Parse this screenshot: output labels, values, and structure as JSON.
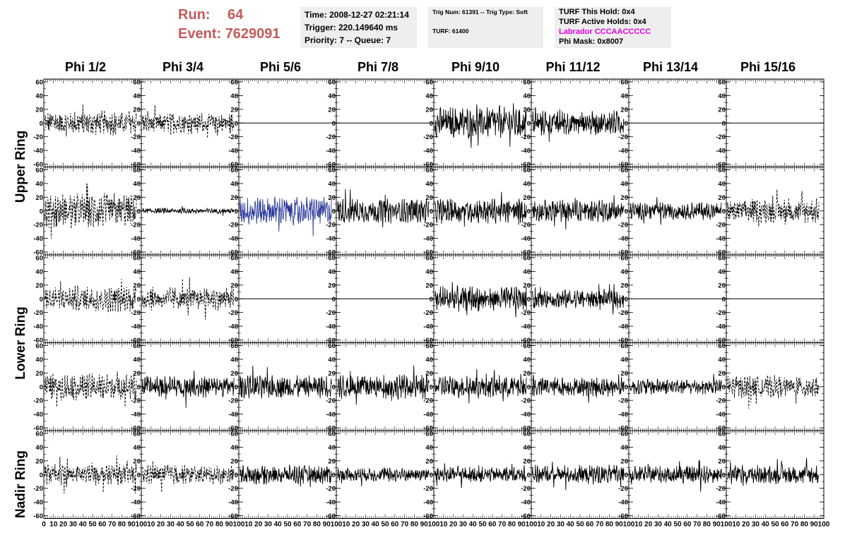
{
  "header": {
    "run_label": "Run:",
    "run_value": "64",
    "event_label": "Event:",
    "event_value": "7629091",
    "time_line": "Time: 2008-12-27 02:21:14",
    "trigger_line": "Trigger: 220.149640 ms",
    "priority_line": "Priority: 7 -- Queue: 7",
    "trig_line": "Trig Num: 61391 -- Trig Type: Soft",
    "turf_line": "TURF: 61400",
    "turf_hold": "TURF This Hold: 0x4",
    "turf_active": "TURF Active Holds: 0x4",
    "labrador": "Labrador CCCAACCCCC",
    "phi_mask": "Phi Mask: 0x8007"
  },
  "columns": [
    "Phi 1/2",
    "Phi 3/4",
    "Phi 5/6",
    "Phi 7/8",
    "Phi 9/10",
    "Phi 11/12",
    "Phi 13/14",
    "Phi 15/16"
  ],
  "rows": [
    "Upper Ring",
    "Lower Ring",
    "Nadir Ring"
  ],
  "colors": {
    "trace": "#000000",
    "highlight": "#2b3a9a",
    "header_red": "#c45a58",
    "labrador": "#e000e0",
    "info_bg": "#eeeeee"
  },
  "chart_data": {
    "type": "line",
    "xlim": [
      0,
      100
    ],
    "ylim": [
      -60,
      60
    ],
    "y_ticks": [
      "60",
      "40",
      "20",
      "0",
      "-20",
      "-40",
      "-60"
    ],
    "x_ticks_first": [
      "0",
      "10",
      "20",
      "30",
      "40",
      "50",
      "60",
      "70",
      "80",
      "90",
      "100"
    ],
    "x_ticks_other": [
      "10",
      "20",
      "30",
      "40",
      "50",
      "60",
      "70",
      "80",
      "90",
      "100"
    ],
    "panels": [
      {
        "row": 0,
        "col": 0,
        "style": "dashed",
        "amp": 14
      },
      {
        "row": 0,
        "col": 1,
        "style": "dashed",
        "amp": 12
      },
      {
        "row": 0,
        "col": 2,
        "style": "flat",
        "amp": 0
      },
      {
        "row": 0,
        "col": 3,
        "style": "flat",
        "amp": 0
      },
      {
        "row": 0,
        "col": 4,
        "style": "solid",
        "amp": 18
      },
      {
        "row": 0,
        "col": 5,
        "style": "solid",
        "amp": 14
      },
      {
        "row": 0,
        "col": 6,
        "style": "flat",
        "amp": 0
      },
      {
        "row": 0,
        "col": 7,
        "style": "flat",
        "amp": 0
      },
      {
        "row": 1,
        "col": 0,
        "style": "dashed",
        "amp": 20
      },
      {
        "row": 1,
        "col": 1,
        "style": "solid",
        "amp": 3
      },
      {
        "row": 1,
        "col": 2,
        "style": "blue",
        "amp": 16
      },
      {
        "row": 1,
        "col": 3,
        "style": "solid",
        "amp": 14
      },
      {
        "row": 1,
        "col": 4,
        "style": "solid",
        "amp": 14
      },
      {
        "row": 1,
        "col": 5,
        "style": "solid",
        "amp": 13
      },
      {
        "row": 1,
        "col": 6,
        "style": "solid",
        "amp": 10
      },
      {
        "row": 1,
        "col": 7,
        "style": "dashed",
        "amp": 14
      },
      {
        "row": 2,
        "col": 0,
        "style": "dashed",
        "amp": 15
      },
      {
        "row": 2,
        "col": 1,
        "style": "dashed",
        "amp": 13
      },
      {
        "row": 2,
        "col": 2,
        "style": "flat",
        "amp": 0
      },
      {
        "row": 2,
        "col": 3,
        "style": "flat",
        "amp": 0
      },
      {
        "row": 2,
        "col": 4,
        "style": "solid",
        "amp": 15
      },
      {
        "row": 2,
        "col": 5,
        "style": "solid",
        "amp": 11
      },
      {
        "row": 2,
        "col": 6,
        "style": "flat",
        "amp": 0
      },
      {
        "row": 2,
        "col": 7,
        "style": "flat",
        "amp": 0
      },
      {
        "row": 3,
        "col": 0,
        "style": "dashed",
        "amp": 15
      },
      {
        "row": 3,
        "col": 1,
        "style": "solid",
        "amp": 12
      },
      {
        "row": 3,
        "col": 2,
        "style": "solid",
        "amp": 13
      },
      {
        "row": 3,
        "col": 3,
        "style": "solid",
        "amp": 14
      },
      {
        "row": 3,
        "col": 4,
        "style": "solid",
        "amp": 13
      },
      {
        "row": 3,
        "col": 5,
        "style": "solid",
        "amp": 11
      },
      {
        "row": 3,
        "col": 6,
        "style": "solid",
        "amp": 9
      },
      {
        "row": 3,
        "col": 7,
        "style": "dashed",
        "amp": 13
      },
      {
        "row": 4,
        "col": 0,
        "style": "dashed",
        "amp": 12
      },
      {
        "row": 4,
        "col": 1,
        "style": "dashed",
        "amp": 11
      },
      {
        "row": 4,
        "col": 2,
        "style": "solid",
        "amp": 11
      },
      {
        "row": 4,
        "col": 3,
        "style": "solid",
        "amp": 8
      },
      {
        "row": 4,
        "col": 4,
        "style": "solid",
        "amp": 9
      },
      {
        "row": 4,
        "col": 5,
        "style": "solid",
        "amp": 11
      },
      {
        "row": 4,
        "col": 6,
        "style": "solid",
        "amp": 10
      },
      {
        "row": 4,
        "col": 7,
        "style": "solid",
        "amp": 11
      }
    ]
  }
}
